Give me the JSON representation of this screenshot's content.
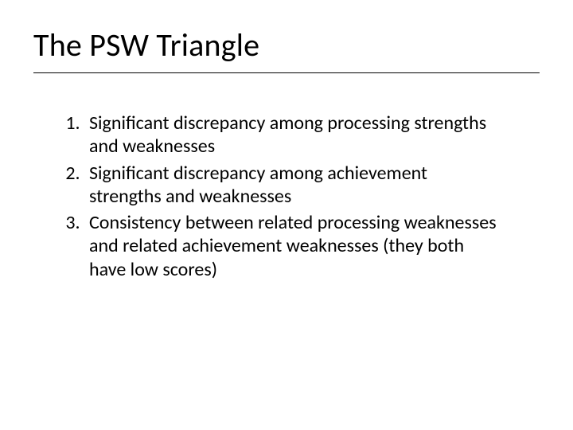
{
  "slide": {
    "title": "The PSW Triangle",
    "title_fontsize": 40,
    "title_color": "#000000",
    "underline_color": "#000000",
    "body_fontsize": 24,
    "body_color": "#000000",
    "background_color": "#ffffff",
    "list_type": "ordered",
    "points": [
      "Significant discrepancy among processing strengths and weaknesses",
      "Significant discrepancy among achievement strengths and weaknesses",
      "Consistency between related processing weaknesses and related achievement weaknesses (they both have low scores)"
    ]
  }
}
